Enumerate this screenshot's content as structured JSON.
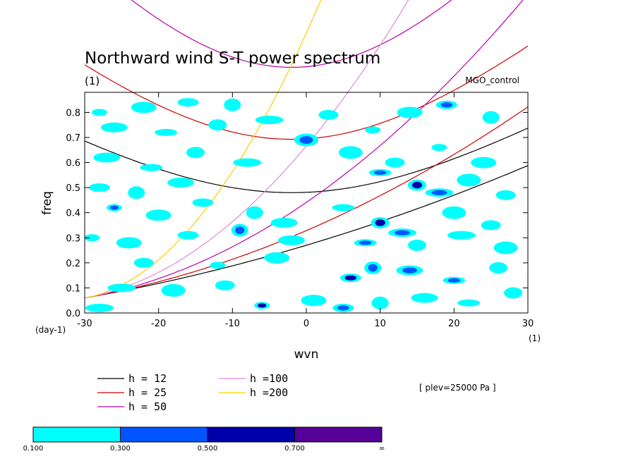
{
  "chart_data": {
    "type": "heatmap",
    "title": "Northward wind S-T power spectrum",
    "subtitle": "(1)",
    "case_label": "MGO_control",
    "xlabel": "wvn",
    "ylabel": "freq",
    "x_unit_label": "(1)",
    "y_unit_label": "(day-1)",
    "xlim": [
      -30,
      30
    ],
    "ylim": [
      0.0,
      0.88
    ],
    "xticks": [
      "-30",
      "-20",
      "-10",
      "0",
      "10",
      "20",
      "30"
    ],
    "yticks": [
      "0.0",
      "0.1",
      "0.2",
      "0.3",
      "0.4",
      "0.5",
      "0.6",
      "0.7",
      "0.8"
    ],
    "annotation": "[ plev=25000 Pa ]",
    "dispersion_curves": [
      {
        "label": "h = 12",
        "h": 12,
        "color": "#000000"
      },
      {
        "label": "h = 25",
        "h": 25,
        "color": "#cc0000"
      },
      {
        "label": "h = 50",
        "h": 50,
        "color": "#bb00aa"
      },
      {
        "label": "h =100",
        "h": 100,
        "color": "#dd88dd"
      },
      {
        "label": "h =200",
        "h": 200,
        "color": "#ffcc00"
      }
    ],
    "color_levels": {
      "bounds": [
        "0.100",
        "0.300",
        "0.500",
        "0.700",
        "∞"
      ],
      "colors": [
        "#00ffff",
        "#0055ff",
        "#0000aa",
        "#550099"
      ]
    },
    "contour_blobs": [
      {
        "x": -28,
        "y": 0.8,
        "level": 0
      },
      {
        "x": -22,
        "y": 0.82,
        "level": 0
      },
      {
        "x": -16,
        "y": 0.84,
        "level": 0
      },
      {
        "x": -10,
        "y": 0.83,
        "level": 0
      },
      {
        "x": -26,
        "y": 0.74,
        "level": 0
      },
      {
        "x": -19,
        "y": 0.72,
        "level": 0
      },
      {
        "x": -12,
        "y": 0.75,
        "level": 0
      },
      {
        "x": -5,
        "y": 0.77,
        "level": 0
      },
      {
        "x": 0,
        "y": 0.69,
        "level": 1
      },
      {
        "x": 3,
        "y": 0.79,
        "level": 0
      },
      {
        "x": 9,
        "y": 0.73,
        "level": 0
      },
      {
        "x": 14,
        "y": 0.8,
        "level": 0
      },
      {
        "x": 19,
        "y": 0.83,
        "level": 1
      },
      {
        "x": 25,
        "y": 0.78,
        "level": 0
      },
      {
        "x": -27,
        "y": 0.62,
        "level": 0
      },
      {
        "x": -21,
        "y": 0.58,
        "level": 0
      },
      {
        "x": -15,
        "y": 0.64,
        "level": 0
      },
      {
        "x": -8,
        "y": 0.6,
        "level": 0
      },
      {
        "x": 6,
        "y": 0.64,
        "level": 0
      },
      {
        "x": 12,
        "y": 0.6,
        "level": 0
      },
      {
        "x": 18,
        "y": 0.66,
        "level": 0
      },
      {
        "x": 24,
        "y": 0.6,
        "level": 0
      },
      {
        "x": -28,
        "y": 0.5,
        "level": 0
      },
      {
        "x": -23,
        "y": 0.48,
        "level": 0
      },
      {
        "x": -17,
        "y": 0.52,
        "level": 0
      },
      {
        "x": 10,
        "y": 0.56,
        "level": 1
      },
      {
        "x": 15,
        "y": 0.51,
        "level": 2
      },
      {
        "x": 18,
        "y": 0.48,
        "level": 1
      },
      {
        "x": 22,
        "y": 0.53,
        "level": 0
      },
      {
        "x": 27,
        "y": 0.47,
        "level": 0
      },
      {
        "x": -26,
        "y": 0.42,
        "level": 1
      },
      {
        "x": -20,
        "y": 0.39,
        "level": 0
      },
      {
        "x": -14,
        "y": 0.44,
        "level": 0
      },
      {
        "x": -7,
        "y": 0.4,
        "level": 0
      },
      {
        "x": -3,
        "y": 0.36,
        "level": 0
      },
      {
        "x": 5,
        "y": 0.42,
        "level": 0
      },
      {
        "x": 10,
        "y": 0.36,
        "level": 2
      },
      {
        "x": 13,
        "y": 0.32,
        "level": 1
      },
      {
        "x": 20,
        "y": 0.4,
        "level": 0
      },
      {
        "x": 25,
        "y": 0.35,
        "level": 0
      },
      {
        "x": -29,
        "y": 0.3,
        "level": 0
      },
      {
        "x": -24,
        "y": 0.28,
        "level": 0
      },
      {
        "x": -16,
        "y": 0.31,
        "level": 0
      },
      {
        "x": -9,
        "y": 0.33,
        "level": 1
      },
      {
        "x": -2,
        "y": 0.29,
        "level": 0
      },
      {
        "x": 8,
        "y": 0.28,
        "level": 1
      },
      {
        "x": 15,
        "y": 0.27,
        "level": 0
      },
      {
        "x": 21,
        "y": 0.31,
        "level": 0
      },
      {
        "x": 27,
        "y": 0.26,
        "level": 0
      },
      {
        "x": -22,
        "y": 0.2,
        "level": 0
      },
      {
        "x": -12,
        "y": 0.19,
        "level": 0
      },
      {
        "x": -4,
        "y": 0.22,
        "level": 0
      },
      {
        "x": 6,
        "y": 0.14,
        "level": 2
      },
      {
        "x": 9,
        "y": 0.18,
        "level": 1
      },
      {
        "x": 14,
        "y": 0.17,
        "level": 1
      },
      {
        "x": 20,
        "y": 0.13,
        "level": 1
      },
      {
        "x": 26,
        "y": 0.18,
        "level": 0
      },
      {
        "x": -25,
        "y": 0.1,
        "level": 0
      },
      {
        "x": -18,
        "y": 0.09,
        "level": 0
      },
      {
        "x": -11,
        "y": 0.11,
        "level": 0
      },
      {
        "x": -6,
        "y": 0.03,
        "level": 2
      },
      {
        "x": 1,
        "y": 0.05,
        "level": 0
      },
      {
        "x": 5,
        "y": 0.02,
        "level": 1
      },
      {
        "x": 10,
        "y": 0.04,
        "level": 0
      },
      {
        "x": 16,
        "y": 0.06,
        "level": 0
      },
      {
        "x": 22,
        "y": 0.04,
        "level": 0
      },
      {
        "x": 28,
        "y": 0.08,
        "level": 0
      },
      {
        "x": -28,
        "y": 0.02,
        "level": 0
      }
    ],
    "grid": false,
    "legend_position": "bottom-left"
  }
}
